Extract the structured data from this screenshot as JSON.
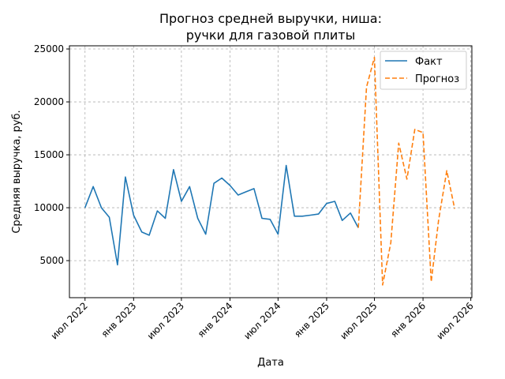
{
  "chart_data": {
    "type": "line",
    "title": [
      "Прогноз средней выручки, ниша:",
      "ручки для газовой плиты"
    ],
    "xlabel": "Дата",
    "ylabel": "Средняя выручка, руб.",
    "ylim": [
      1500,
      25300
    ],
    "yticks": [
      5000,
      10000,
      15000,
      20000,
      25000
    ],
    "xlim": [
      "2022-05-03",
      "2026-07-05"
    ],
    "xticks": [
      {
        "date": "2022-07-01",
        "label": "июл 2022"
      },
      {
        "date": "2023-01-01",
        "label": "янв 2023"
      },
      {
        "date": "2023-07-01",
        "label": "июл 2023"
      },
      {
        "date": "2024-01-01",
        "label": "янв 2024"
      },
      {
        "date": "2024-07-01",
        "label": "июл 2024"
      },
      {
        "date": "2025-01-01",
        "label": "янв 2025"
      },
      {
        "date": "2025-07-01",
        "label": "июл 2025"
      },
      {
        "date": "2026-01-01",
        "label": "янв 2026"
      },
      {
        "date": "2026-07-01",
        "label": "июл 2026"
      }
    ],
    "grid": true,
    "legend_position": "top-right",
    "series": [
      {
        "name": "Факт",
        "color": "#1f77b4",
        "style": "solid",
        "x": [
          "2022-07-01",
          "2022-08-01",
          "2022-09-01",
          "2022-10-01",
          "2022-11-01",
          "2022-12-01",
          "2023-01-01",
          "2023-02-01",
          "2023-03-01",
          "2023-04-01",
          "2023-05-01",
          "2023-06-01",
          "2023-07-01",
          "2023-08-01",
          "2023-09-01",
          "2023-10-01",
          "2023-11-01",
          "2023-12-01",
          "2024-01-01",
          "2024-02-01",
          "2024-03-01",
          "2024-04-01",
          "2024-05-01",
          "2024-06-01",
          "2024-07-01",
          "2024-08-01",
          "2024-09-01",
          "2024-10-01",
          "2024-11-01",
          "2024-12-01",
          "2025-01-01",
          "2025-02-01",
          "2025-03-01",
          "2025-04-01",
          "2025-05-01"
        ],
        "values": [
          10000,
          12000,
          10000,
          9100,
          4600,
          12900,
          9300,
          7700,
          7400,
          9700,
          9000,
          13600,
          10600,
          12000,
          9000,
          7500,
          12300,
          12800,
          12100,
          11200,
          11500,
          11800,
          9000,
          8900,
          7500,
          14000,
          9200,
          9200,
          9300,
          9400,
          10400,
          10600,
          8800,
          9500,
          8100
        ]
      },
      {
        "name": "Прогноз",
        "color": "#ff7f0e",
        "style": "dashed",
        "x": [
          "2025-05-01",
          "2025-06-01",
          "2025-07-01",
          "2025-08-01",
          "2025-09-01",
          "2025-10-01",
          "2025-11-01",
          "2025-12-01",
          "2026-01-01",
          "2026-02-01",
          "2026-03-01",
          "2026-04-01",
          "2026-05-01"
        ],
        "values": [
          8100,
          21400,
          24200,
          2700,
          6700,
          16100,
          12700,
          17400,
          17100,
          3000,
          8800,
          13500,
          9900
        ]
      }
    ]
  }
}
